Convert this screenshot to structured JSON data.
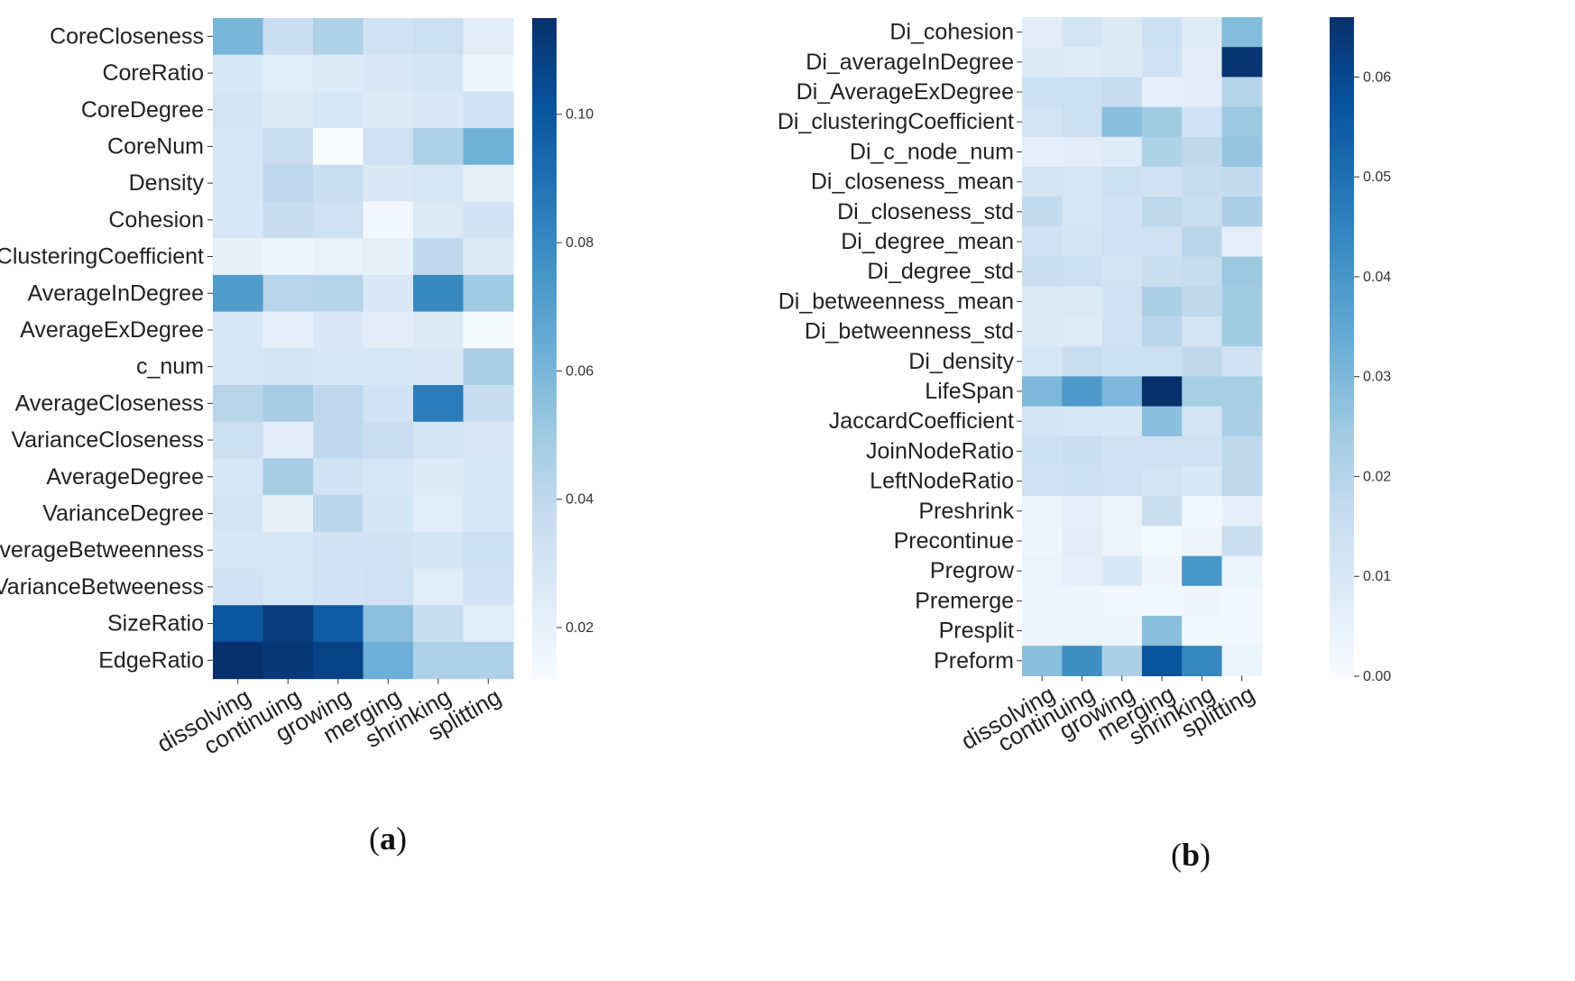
{
  "colors": {
    "min": "#f7fbff",
    "low": "#c6dbef",
    "mid": "#6baed6",
    "high": "#2171b5",
    "max": "#08306b"
  },
  "chart_data": [
    {
      "type": "heatmap",
      "panel": "a",
      "rows": [
        "CoreCloseness",
        "CoreRatio",
        "CoreDegree",
        "CoreNum",
        "Density",
        "Cohesion",
        "ClusteringCoefficient",
        "AverageInDegree",
        "AverageExDegree",
        "c_num",
        "AverageCloseness",
        "VarianceCloseness",
        "AverageDegree",
        "VarianceDegree",
        "AverageBetweenness",
        "VarianceBetweeness",
        "SizeRatio",
        "EdgeRatio"
      ],
      "columns": [
        "dissolving",
        "continuing",
        "growing",
        "merging",
        "shrinking",
        "splitting"
      ],
      "values": [
        [
          0.06,
          0.035,
          0.045,
          0.032,
          0.034,
          0.023
        ],
        [
          0.028,
          0.024,
          0.026,
          0.027,
          0.03,
          0.016
        ],
        [
          0.03,
          0.026,
          0.029,
          0.026,
          0.027,
          0.032
        ],
        [
          0.029,
          0.035,
          0.012,
          0.033,
          0.045,
          0.062
        ],
        [
          0.028,
          0.04,
          0.035,
          0.027,
          0.029,
          0.02
        ],
        [
          0.028,
          0.036,
          0.033,
          0.015,
          0.026,
          0.031
        ],
        [
          0.02,
          0.016,
          0.019,
          0.021,
          0.04,
          0.026
        ],
        [
          0.072,
          0.042,
          0.043,
          0.027,
          0.08,
          0.05
        ],
        [
          0.028,
          0.022,
          0.027,
          0.023,
          0.026,
          0.013
        ],
        [
          0.029,
          0.03,
          0.028,
          0.028,
          0.027,
          0.046
        ],
        [
          0.042,
          0.048,
          0.04,
          0.032,
          0.085,
          0.037
        ],
        [
          0.034,
          0.023,
          0.04,
          0.035,
          0.03,
          0.027
        ],
        [
          0.028,
          0.048,
          0.032,
          0.029,
          0.025,
          0.028
        ],
        [
          0.03,
          0.02,
          0.041,
          0.03,
          0.024,
          0.028
        ],
        [
          0.028,
          0.028,
          0.031,
          0.031,
          0.03,
          0.034
        ],
        [
          0.031,
          0.028,
          0.031,
          0.033,
          0.024,
          0.031
        ],
        [
          0.1,
          0.11,
          0.098,
          0.055,
          0.036,
          0.024
        ],
        [
          0.115,
          0.112,
          0.108,
          0.063,
          0.045,
          0.045
        ]
      ],
      "colorbar": {
        "vmin": 0.012,
        "vmax": 0.115,
        "ticks": [
          "0.02",
          "0.04",
          "0.06",
          "0.08",
          "0.10"
        ],
        "tick_values": [
          0.02,
          0.04,
          0.06,
          0.08,
          0.1
        ]
      },
      "caption_letter": "a",
      "caption_open": "(",
      "caption_close": ")"
    },
    {
      "type": "heatmap",
      "panel": "b",
      "rows": [
        "Di_cohesion",
        "Di_averageInDegree",
        "Di_AverageExDegree",
        "Di_clusteringCoefficient",
        "Di_c_node_num",
        "Di_closeness_mean",
        "Di_closeness_std",
        "Di_degree_mean",
        "Di_degree_std",
        "Di_betweenness_mean",
        "Di_betweenness_std",
        "Di_density",
        "LifeSpan",
        "JaccardCoefficient",
        "JoinNodeRatio",
        "LeftNodeRatio",
        "Preshrink",
        "Precontinue",
        "Pregrow",
        "Premerge",
        "Presplit",
        "Preform"
      ],
      "columns": [
        "dissolving",
        "continuing",
        "growing",
        "merging",
        "shrinking",
        "splitting"
      ],
      "values": [
        [
          0.007,
          0.012,
          0.009,
          0.014,
          0.008,
          0.029
        ],
        [
          0.009,
          0.008,
          0.009,
          0.013,
          0.007,
          0.065
        ],
        [
          0.014,
          0.014,
          0.016,
          0.006,
          0.007,
          0.02
        ],
        [
          0.012,
          0.014,
          0.028,
          0.024,
          0.013,
          0.025
        ],
        [
          0.006,
          0.007,
          0.008,
          0.021,
          0.018,
          0.026
        ],
        [
          0.012,
          0.011,
          0.014,
          0.013,
          0.016,
          0.017
        ],
        [
          0.017,
          0.011,
          0.013,
          0.018,
          0.015,
          0.022
        ],
        [
          0.013,
          0.012,
          0.013,
          0.013,
          0.019,
          0.006
        ],
        [
          0.015,
          0.014,
          0.012,
          0.015,
          0.016,
          0.025
        ],
        [
          0.009,
          0.009,
          0.013,
          0.022,
          0.018,
          0.024
        ],
        [
          0.009,
          0.008,
          0.013,
          0.019,
          0.012,
          0.024
        ],
        [
          0.011,
          0.015,
          0.014,
          0.014,
          0.018,
          0.013
        ],
        [
          0.03,
          0.039,
          0.03,
          0.066,
          0.023,
          0.023
        ],
        [
          0.012,
          0.011,
          0.01,
          0.028,
          0.012,
          0.022
        ],
        [
          0.014,
          0.015,
          0.013,
          0.013,
          0.013,
          0.018
        ],
        [
          0.013,
          0.014,
          0.013,
          0.012,
          0.01,
          0.018
        ],
        [
          0.004,
          0.006,
          0.004,
          0.015,
          0.002,
          0.006
        ],
        [
          0.003,
          0.007,
          0.004,
          0.001,
          0.003,
          0.015
        ],
        [
          0.004,
          0.006,
          0.01,
          0.003,
          0.04,
          0.004
        ],
        [
          0.003,
          0.003,
          0.002,
          0.002,
          0.003,
          0.002
        ],
        [
          0.003,
          0.004,
          0.003,
          0.028,
          0.002,
          0.002
        ],
        [
          0.028,
          0.042,
          0.022,
          0.057,
          0.044,
          0.004
        ]
      ],
      "colorbar": {
        "vmin": 0.0,
        "vmax": 0.066,
        "ticks": [
          "0.00",
          "0.01",
          "0.02",
          "0.03",
          "0.04",
          "0.05",
          "0.06"
        ],
        "tick_values": [
          0.0,
          0.01,
          0.02,
          0.03,
          0.04,
          0.05,
          0.06
        ]
      },
      "caption_letter": "b",
      "caption_open": "(",
      "caption_close": ")"
    }
  ]
}
